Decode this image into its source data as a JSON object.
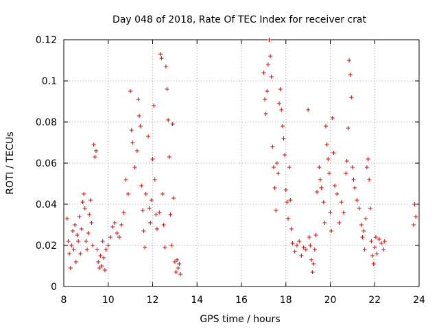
{
  "chart_data": {
    "type": "scatter",
    "title": "Day 048 of 2018, Rate Of TEC Index for receiver crat",
    "xlabel": "GPS time / hours",
    "ylabel": "ROTI / TECUs",
    "xlim": [
      8,
      24
    ],
    "ylim": [
      0,
      0.12
    ],
    "x_ticks": [
      "8",
      "10",
      "12",
      "14",
      "16",
      "18",
      "20",
      "22",
      "24"
    ],
    "y_ticks": [
      "0",
      "0.02",
      "0.04",
      "0.06",
      "0.08",
      "0.1",
      "0.12"
    ],
    "grid": true,
    "marker": "+",
    "marker_color": "#e00000",
    "series": [
      {
        "name": "ROTI",
        "points": [
          [
            8.15,
            0.033
          ],
          [
            8.2,
            0.022
          ],
          [
            8.25,
            0.016
          ],
          [
            8.3,
            0.009
          ],
          [
            8.35,
            0.02
          ],
          [
            8.4,
            0.027
          ],
          [
            8.45,
            0.018
          ],
          [
            8.5,
            0.03
          ],
          [
            8.55,
            0.012
          ],
          [
            8.6,
            0.025
          ],
          [
            8.65,
            0.022
          ],
          [
            8.7,
            0.034
          ],
          [
            8.75,
            0.016
          ],
          [
            8.8,
            0.028
          ],
          [
            8.85,
            0.041
          ],
          [
            8.9,
            0.045
          ],
          [
            8.95,
            0.038
          ],
          [
            9.0,
            0.022
          ],
          [
            9.05,
            0.018
          ],
          [
            9.1,
            0.026
          ],
          [
            9.15,
            0.035
          ],
          [
            9.2,
            0.042
          ],
          [
            9.25,
            0.031
          ],
          [
            9.3,
            0.02
          ],
          [
            9.35,
            0.069
          ],
          [
            9.4,
            0.063
          ],
          [
            9.45,
            0.066
          ],
          [
            9.5,
            0.018
          ],
          [
            9.55,
            0.012
          ],
          [
            9.6,
            0.009
          ],
          [
            9.65,
            0.015
          ],
          [
            9.7,
            0.01
          ],
          [
            9.75,
            0.022
          ],
          [
            9.8,
            0.014
          ],
          [
            9.85,
            0.008
          ],
          [
            9.9,
            0.018
          ],
          [
            10.0,
            0.02
          ],
          [
            10.1,
            0.024
          ],
          [
            10.2,
            0.029
          ],
          [
            10.3,
            0.031
          ],
          [
            10.4,
            0.026
          ],
          [
            10.5,
            0.024
          ],
          [
            10.6,
            0.03
          ],
          [
            10.7,
            0.036
          ],
          [
            10.8,
            0.052
          ],
          [
            10.9,
            0.045
          ],
          [
            11.0,
            0.095
          ],
          [
            11.05,
            0.076
          ],
          [
            11.1,
            0.07
          ],
          [
            11.2,
            0.058
          ],
          [
            11.3,
            0.066
          ],
          [
            11.35,
            0.091
          ],
          [
            11.4,
            0.083
          ],
          [
            11.45,
            0.078
          ],
          [
            11.5,
            0.049
          ],
          [
            11.55,
            0.037
          ],
          [
            11.6,
            0.027
          ],
          [
            11.65,
            0.019
          ],
          [
            11.7,
            0.045
          ],
          [
            11.8,
            0.073
          ],
          [
            11.85,
            0.038
          ],
          [
            11.9,
            0.031
          ],
          [
            11.95,
            0.042
          ],
          [
            12.0,
            0.062
          ],
          [
            12.05,
            0.088
          ],
          [
            12.1,
            0.052
          ],
          [
            12.15,
            0.035
          ],
          [
            12.2,
            0.028
          ],
          [
            12.3,
            0.036
          ],
          [
            12.35,
            0.113
          ],
          [
            12.4,
            0.111
          ],
          [
            12.45,
            0.045
          ],
          [
            12.5,
            0.03
          ],
          [
            12.55,
            0.019
          ],
          [
            12.6,
            0.107
          ],
          [
            12.65,
            0.096
          ],
          [
            12.7,
            0.081
          ],
          [
            12.75,
            0.063
          ],
          [
            12.8,
            0.035
          ],
          [
            12.85,
            0.02
          ],
          [
            12.9,
            0.079
          ],
          [
            12.95,
            0.043
          ],
          [
            13.0,
            0.012
          ],
          [
            13.05,
            0.007
          ],
          [
            13.1,
            0.013
          ],
          [
            13.15,
            0.009
          ],
          [
            13.2,
            0.011
          ],
          [
            13.25,
            0.006
          ],
          [
            17.0,
            0.104
          ],
          [
            17.05,
            0.091
          ],
          [
            17.1,
            0.084
          ],
          [
            17.15,
            0.095
          ],
          [
            17.2,
            0.108
          ],
          [
            17.25,
            0.12
          ],
          [
            17.3,
            0.112
          ],
          [
            17.35,
            0.102
          ],
          [
            17.4,
            0.068
          ],
          [
            17.45,
            0.058
          ],
          [
            17.5,
            0.048
          ],
          [
            17.55,
            0.037
          ],
          [
            17.6,
            0.06
          ],
          [
            17.65,
            0.055
          ],
          [
            17.7,
            0.089
          ],
          [
            17.75,
            0.096
          ],
          [
            17.8,
            0.086
          ],
          [
            17.85,
            0.078
          ],
          [
            17.9,
            0.072
          ],
          [
            17.95,
            0.064
          ],
          [
            18.0,
            0.047
          ],
          [
            18.05,
            0.041
          ],
          [
            18.1,
            0.033
          ],
          [
            18.15,
            0.058
          ],
          [
            18.2,
            0.042
          ],
          [
            18.25,
            0.028
          ],
          [
            18.3,
            0.021
          ],
          [
            18.4,
            0.017
          ],
          [
            18.5,
            0.02
          ],
          [
            18.6,
            0.022
          ],
          [
            18.7,
            0.015
          ],
          [
            18.8,
            0.019
          ],
          [
            18.9,
            0.018
          ],
          [
            19.0,
            0.086
          ],
          [
            19.05,
            0.024
          ],
          [
            19.1,
            0.02
          ],
          [
            19.15,
            0.013
          ],
          [
            19.2,
            0.007
          ],
          [
            19.25,
            0.011
          ],
          [
            19.3,
            0.018
          ],
          [
            19.35,
            0.025
          ],
          [
            19.4,
            0.046
          ],
          [
            19.5,
            0.058
          ],
          [
            19.55,
            0.052
          ],
          [
            19.6,
            0.048
          ],
          [
            19.7,
            0.041
          ],
          [
            19.75,
            0.031
          ],
          [
            19.8,
            0.078
          ],
          [
            19.85,
            0.069
          ],
          [
            19.9,
            0.062
          ],
          [
            19.95,
            0.055
          ],
          [
            20.0,
            0.036
          ],
          [
            20.05,
            0.027
          ],
          [
            20.1,
            0.082
          ],
          [
            20.15,
            0.065
          ],
          [
            20.2,
            0.049
          ],
          [
            20.3,
            0.045
          ],
          [
            20.4,
            0.031
          ],
          [
            20.5,
            0.041
          ],
          [
            20.6,
            0.036
          ],
          [
            20.7,
            0.055
          ],
          [
            20.75,
            0.061
          ],
          [
            20.8,
            0.077
          ],
          [
            20.85,
            0.11
          ],
          [
            20.9,
            0.103
          ],
          [
            20.95,
            0.092
          ],
          [
            21.0,
            0.058
          ],
          [
            21.05,
            0.052
          ],
          [
            21.1,
            0.048
          ],
          [
            21.2,
            0.042
          ],
          [
            21.3,
            0.038
          ],
          [
            21.4,
            0.03
          ],
          [
            21.45,
            0.024
          ],
          [
            21.5,
            0.027
          ],
          [
            21.55,
            0.018
          ],
          [
            21.6,
            0.033
          ],
          [
            21.65,
            0.058
          ],
          [
            21.7,
            0.062
          ],
          [
            21.75,
            0.052
          ],
          [
            21.8,
            0.038
          ],
          [
            21.85,
            0.022
          ],
          [
            21.9,
            0.015
          ],
          [
            21.95,
            0.011
          ],
          [
            22.0,
            0.019
          ],
          [
            22.05,
            0.024
          ],
          [
            22.1,
            0.016
          ],
          [
            22.2,
            0.023
          ],
          [
            22.3,
            0.021
          ],
          [
            22.4,
            0.018
          ],
          [
            22.45,
            0.022
          ],
          [
            23.75,
            0.03
          ],
          [
            23.8,
            0.04
          ],
          [
            23.85,
            0.034
          ]
        ]
      }
    ]
  }
}
